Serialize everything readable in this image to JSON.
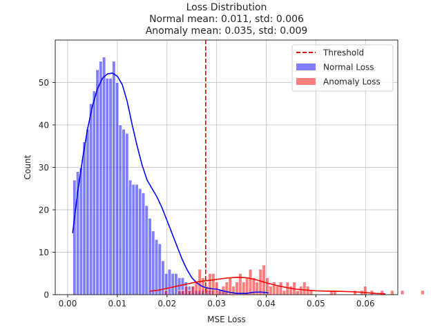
{
  "chart_data": {
    "type": "histogram",
    "title_lines": [
      "Loss Distribution",
      "Normal mean: 0.011, std: 0.006",
      "Anomaly mean: 0.035, std: 0.009"
    ],
    "xlabel": "MSE Loss",
    "ylabel": "Count",
    "xlim": [
      -0.0025,
      0.0665
    ],
    "ylim": [
      0,
      60
    ],
    "xticks": [
      0.0,
      0.01,
      0.02,
      0.03,
      0.04,
      0.05,
      0.06
    ],
    "xtick_labels": [
      "0.00",
      "0.01",
      "0.02",
      "0.03",
      "0.04",
      "0.05",
      "0.06"
    ],
    "yticks": [
      0,
      10,
      20,
      30,
      40,
      50
    ],
    "ytick_labels": [
      "0",
      "10",
      "20",
      "30",
      "40",
      "50"
    ],
    "grid": true,
    "legend_position": "top-right",
    "threshold": {
      "name": "Threshold",
      "x": 0.0278,
      "color": "#e00000"
    },
    "series": [
      {
        "name": "Normal Loss",
        "color": "#0000ff",
        "bin_start": 0.00105,
        "bin_width": 0.00066,
        "counts": [
          27,
          29,
          30,
          36,
          39,
          45,
          48,
          53,
          55,
          56,
          51,
          51,
          55,
          50,
          40,
          39,
          38,
          27,
          26,
          26,
          25,
          24,
          21,
          18,
          15,
          13,
          12,
          8,
          5,
          6,
          5,
          5,
          4,
          4,
          3,
          2,
          2,
          1,
          1,
          1,
          1,
          1,
          1,
          0,
          1,
          1,
          1,
          0,
          0,
          0,
          0,
          0,
          0,
          0,
          0,
          0,
          0,
          0,
          0,
          0
        ],
        "kde": [
          [
            0.001,
            14.5
          ],
          [
            0.002,
            24
          ],
          [
            0.003,
            32
          ],
          [
            0.004,
            39
          ],
          [
            0.005,
            44.5
          ],
          [
            0.006,
            48.5
          ],
          [
            0.007,
            51
          ],
          [
            0.008,
            52
          ],
          [
            0.009,
            52.2
          ],
          [
            0.01,
            51.5
          ],
          [
            0.011,
            49.5
          ],
          [
            0.012,
            45.5
          ],
          [
            0.013,
            40
          ],
          [
            0.014,
            35
          ],
          [
            0.015,
            30.5
          ],
          [
            0.016,
            27
          ],
          [
            0.017,
            25
          ],
          [
            0.018,
            23
          ],
          [
            0.019,
            20.5
          ],
          [
            0.02,
            17.5
          ],
          [
            0.021,
            14.5
          ],
          [
            0.022,
            11.5
          ],
          [
            0.023,
            8.5
          ],
          [
            0.024,
            6
          ],
          [
            0.025,
            4
          ],
          [
            0.026,
            2.8
          ],
          [
            0.027,
            2
          ],
          [
            0.028,
            1.6
          ],
          [
            0.029,
            1.4
          ],
          [
            0.03,
            1.3
          ],
          [
            0.031,
            1
          ],
          [
            0.032,
            0.7
          ],
          [
            0.033,
            0.5
          ],
          [
            0.034,
            0.3
          ],
          [
            0.035,
            0.3
          ],
          [
            0.036,
            0.3
          ],
          [
            0.037,
            0.5
          ],
          [
            0.038,
            0.6
          ],
          [
            0.039,
            0.6
          ],
          [
            0.0405,
            0.4
          ]
        ]
      },
      {
        "name": "Anomaly Loss",
        "color": "#ff0000",
        "bin_start": 0.01675,
        "bin_width": 0.00068,
        "counts": [
          0,
          0,
          0,
          0,
          1,
          0,
          0,
          0,
          1,
          1,
          2,
          1,
          2,
          3,
          6,
          4,
          2,
          5,
          5,
          3,
          1,
          2,
          3,
          4,
          2,
          3,
          5,
          3,
          4,
          6,
          4,
          3,
          6,
          7,
          4,
          2,
          3,
          2,
          3,
          1,
          3,
          2,
          3,
          1,
          2,
          3,
          2,
          1,
          0,
          0,
          0,
          0,
          0,
          1,
          1,
          0,
          0,
          0,
          0,
          0,
          1,
          0,
          1,
          2,
          0,
          1,
          0,
          0,
          1,
          0,
          0,
          1,
          0,
          0,
          1,
          0,
          0,
          0,
          0,
          0,
          1
        ],
        "kde": [
          [
            0.0165,
            0.8
          ],
          [
            0.018,
            1
          ],
          [
            0.02,
            1.5
          ],
          [
            0.022,
            2
          ],
          [
            0.024,
            2.5
          ],
          [
            0.026,
            3
          ],
          [
            0.028,
            3.3
          ],
          [
            0.03,
            3.6
          ],
          [
            0.032,
            3.9
          ],
          [
            0.034,
            4.1
          ],
          [
            0.036,
            4
          ],
          [
            0.038,
            3.5
          ],
          [
            0.04,
            2.8
          ],
          [
            0.042,
            2.2
          ],
          [
            0.044,
            1.7
          ],
          [
            0.046,
            1.3
          ],
          [
            0.048,
            1.1
          ],
          [
            0.05,
            0.9
          ],
          [
            0.052,
            0.85
          ],
          [
            0.054,
            0.8
          ],
          [
            0.056,
            0.75
          ],
          [
            0.058,
            0.65
          ],
          [
            0.06,
            0.5
          ],
          [
            0.062,
            0.3
          ],
          [
            0.064,
            0.2
          ]
        ]
      }
    ]
  }
}
